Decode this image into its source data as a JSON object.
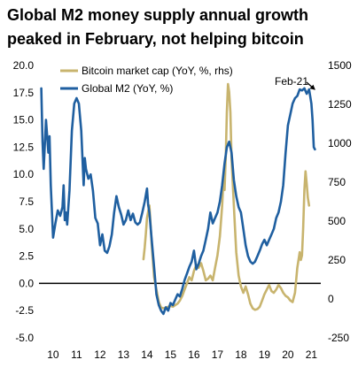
{
  "title": "Global M2 money supply annual growth peaked in February, not helping bitcoin",
  "chart_data": {
    "type": "line",
    "left_axis": {
      "min": -5.0,
      "max": 20.0,
      "ticks": [
        "-5.0",
        "-2.5",
        "0.0",
        "2.5",
        "5.0",
        "7.5",
        "10.0",
        "12.5",
        "15.0",
        "17.5",
        "20.0"
      ]
    },
    "right_axis": {
      "min": -250,
      "max": 1500,
      "ticks": [
        "-250",
        "0",
        "250",
        "500",
        "750",
        "1000",
        "1250",
        "1500"
      ]
    },
    "x_axis": {
      "min": 9.4,
      "max": 21.4,
      "ticks": [
        {
          "v": 10,
          "label": "10"
        },
        {
          "v": 11,
          "label": "11"
        },
        {
          "v": 12,
          "label": "12"
        },
        {
          "v": 13,
          "label": "13"
        },
        {
          "v": 14,
          "label": "14"
        },
        {
          "v": 15,
          "label": "15"
        },
        {
          "v": 16,
          "label": "16"
        },
        {
          "v": 17,
          "label": "17"
        },
        {
          "v": 18,
          "label": "18"
        },
        {
          "v": 19,
          "label": "19"
        },
        {
          "v": 20,
          "label": "20"
        },
        {
          "v": 21,
          "label": "21"
        }
      ]
    },
    "zero_line": true,
    "legend": {
      "position": "top-left",
      "entries": [
        {
          "label": "Bitcoin market cap (YoY, %, rhs)",
          "color": "#c8b46e"
        },
        {
          "label": "Global M2 (YoY, %)",
          "color": "#1f5fa0"
        }
      ]
    },
    "annotation": {
      "text": "Feb-21",
      "x": 21.1,
      "y": 17.9
    },
    "series": [
      {
        "name": "Global M2 (YoY, %)",
        "axis": "left",
        "color": "#1f5fa0",
        "points": [
          [
            9.5,
            17.9
          ],
          [
            9.55,
            13.0
          ],
          [
            9.6,
            10.5
          ],
          [
            9.7,
            15.0
          ],
          [
            9.8,
            12.0
          ],
          [
            9.85,
            13.5
          ],
          [
            9.9,
            9.0
          ],
          [
            10.0,
            4.2
          ],
          [
            10.1,
            5.5
          ],
          [
            10.2,
            6.7
          ],
          [
            10.3,
            6.2
          ],
          [
            10.4,
            7.0
          ],
          [
            10.45,
            9.0
          ],
          [
            10.5,
            5.8
          ],
          [
            10.55,
            6.5
          ],
          [
            10.6,
            5.4
          ],
          [
            10.7,
            8.5
          ],
          [
            10.8,
            14.0
          ],
          [
            10.9,
            16.5
          ],
          [
            11.0,
            17.0
          ],
          [
            11.1,
            16.5
          ],
          [
            11.2,
            14.0
          ],
          [
            11.3,
            9.0
          ],
          [
            11.35,
            11.5
          ],
          [
            11.4,
            10.5
          ],
          [
            11.5,
            9.6
          ],
          [
            11.6,
            10.0
          ],
          [
            11.7,
            8.5
          ],
          [
            11.8,
            6.0
          ],
          [
            11.9,
            5.5
          ],
          [
            12.0,
            3.5
          ],
          [
            12.1,
            4.5
          ],
          [
            12.2,
            3.0
          ],
          [
            12.3,
            2.8
          ],
          [
            12.4,
            3.4
          ],
          [
            12.5,
            4.5
          ],
          [
            12.6,
            6.5
          ],
          [
            12.7,
            8.0
          ],
          [
            12.8,
            7.0
          ],
          [
            12.9,
            6.3
          ],
          [
            13.0,
            5.4
          ],
          [
            13.1,
            5.8
          ],
          [
            13.2,
            6.7
          ],
          [
            13.3,
            5.8
          ],
          [
            13.4,
            6.4
          ],
          [
            13.5,
            5.6
          ],
          [
            13.6,
            5.4
          ],
          [
            13.7,
            5.6
          ],
          [
            13.8,
            6.5
          ],
          [
            13.9,
            7.5
          ],
          [
            14.0,
            8.7
          ],
          [
            14.05,
            7.2
          ],
          [
            14.1,
            6.5
          ],
          [
            14.2,
            4.0
          ],
          [
            14.3,
            1.5
          ],
          [
            14.4,
            -1.0
          ],
          [
            14.5,
            -2.0
          ],
          [
            14.6,
            -2.5
          ],
          [
            14.7,
            -2.8
          ],
          [
            14.8,
            -2.2
          ],
          [
            14.9,
            -2.5
          ],
          [
            15.0,
            -1.8
          ],
          [
            15.1,
            -2.0
          ],
          [
            15.2,
            -1.5
          ],
          [
            15.3,
            -1.0
          ],
          [
            15.4,
            -1.2
          ],
          [
            15.5,
            -0.5
          ],
          [
            15.6,
            0.3
          ],
          [
            15.7,
            0.9
          ],
          [
            15.8,
            1.5
          ],
          [
            15.9,
            2.0
          ],
          [
            16.0,
            3.0
          ],
          [
            16.1,
            1.3
          ],
          [
            16.2,
            1.8
          ],
          [
            16.3,
            2.5
          ],
          [
            16.4,
            3.0
          ],
          [
            16.5,
            4.0
          ],
          [
            16.6,
            5.0
          ],
          [
            16.7,
            6.5
          ],
          [
            16.8,
            5.5
          ],
          [
            16.9,
            6.0
          ],
          [
            17.0,
            6.5
          ],
          [
            17.1,
            7.5
          ],
          [
            17.2,
            9.0
          ],
          [
            17.3,
            11.0
          ],
          [
            17.4,
            12.5
          ],
          [
            17.5,
            13.0
          ],
          [
            17.6,
            12.0
          ],
          [
            17.7,
            9.5
          ],
          [
            17.8,
            8.0
          ],
          [
            17.9,
            7.0
          ],
          [
            18.0,
            6.5
          ],
          [
            18.1,
            5.0
          ],
          [
            18.2,
            3.5
          ],
          [
            18.3,
            2.5
          ],
          [
            18.4,
            2.0
          ],
          [
            18.5,
            1.8
          ],
          [
            18.6,
            2.0
          ],
          [
            18.7,
            2.5
          ],
          [
            18.8,
            3.0
          ],
          [
            18.9,
            3.6
          ],
          [
            19.0,
            4.0
          ],
          [
            19.1,
            3.5
          ],
          [
            19.2,
            4.0
          ],
          [
            19.3,
            4.5
          ],
          [
            19.4,
            5.0
          ],
          [
            19.5,
            6.0
          ],
          [
            19.6,
            6.5
          ],
          [
            19.7,
            7.5
          ],
          [
            19.8,
            9.0
          ],
          [
            19.9,
            12.0
          ],
          [
            20.0,
            14.5
          ],
          [
            20.1,
            15.5
          ],
          [
            20.2,
            16.5
          ],
          [
            20.3,
            17.0
          ],
          [
            20.4,
            17.2
          ],
          [
            20.5,
            17.8
          ],
          [
            20.6,
            17.7
          ],
          [
            20.7,
            17.9
          ],
          [
            20.8,
            17.4
          ],
          [
            20.9,
            17.8
          ],
          [
            21.0,
            16.5
          ],
          [
            21.05,
            15.0
          ],
          [
            21.1,
            12.5
          ],
          [
            21.15,
            12.3
          ]
        ]
      },
      {
        "name": "Bitcoin market cap (YoY, %, rhs)",
        "axis": "right",
        "color": "#c8b46e",
        "points": [
          [
            13.85,
            255
          ],
          [
            13.9,
            330
          ],
          [
            13.95,
            420
          ],
          [
            14.0,
            520
          ],
          [
            14.05,
            560
          ],
          [
            14.1,
            600
          ],
          [
            14.15,
            480
          ],
          [
            14.2,
            350
          ],
          [
            14.25,
            250
          ],
          [
            14.3,
            140
          ],
          [
            14.4,
            60
          ],
          [
            14.5,
            -20
          ],
          [
            14.6,
            -55
          ],
          [
            14.7,
            -60
          ],
          [
            14.8,
            -55
          ],
          [
            14.9,
            -50
          ],
          [
            15.0,
            -45
          ],
          [
            15.1,
            -50
          ],
          [
            15.2,
            -40
          ],
          [
            15.3,
            -30
          ],
          [
            15.4,
            -10
          ],
          [
            15.5,
            20
          ],
          [
            15.6,
            60
          ],
          [
            15.7,
            100
          ],
          [
            15.8,
            140
          ],
          [
            15.9,
            120
          ],
          [
            16.0,
            180
          ],
          [
            16.1,
            220
          ],
          [
            16.2,
            200
          ],
          [
            16.3,
            230
          ],
          [
            16.4,
            180
          ],
          [
            16.5,
            120
          ],
          [
            16.6,
            130
          ],
          [
            16.7,
            150
          ],
          [
            16.8,
            120
          ],
          [
            16.9,
            200
          ],
          [
            17.0,
            280
          ],
          [
            17.1,
            400
          ],
          [
            17.2,
            600
          ],
          [
            17.25,
            750
          ],
          [
            17.3,
            700
          ],
          [
            17.35,
            900
          ],
          [
            17.4,
            1200
          ],
          [
            17.45,
            1380
          ],
          [
            17.5,
            1330
          ],
          [
            17.55,
            1200
          ],
          [
            17.6,
            900
          ],
          [
            17.7,
            600
          ],
          [
            17.8,
            300
          ],
          [
            17.9,
            150
          ],
          [
            18.0,
            80
          ],
          [
            18.1,
            40
          ],
          [
            18.2,
            80
          ],
          [
            18.3,
            30
          ],
          [
            18.4,
            -30
          ],
          [
            18.5,
            -60
          ],
          [
            18.6,
            -70
          ],
          [
            18.7,
            -65
          ],
          [
            18.8,
            -50
          ],
          [
            18.9,
            -10
          ],
          [
            19.0,
            30
          ],
          [
            19.1,
            60
          ],
          [
            19.2,
            90
          ],
          [
            19.3,
            50
          ],
          [
            19.4,
            40
          ],
          [
            19.5,
            60
          ],
          [
            19.6,
            90
          ],
          [
            19.7,
            70
          ],
          [
            19.8,
            40
          ],
          [
            19.9,
            20
          ],
          [
            20.0,
            10
          ],
          [
            20.1,
            -10
          ],
          [
            20.2,
            -20
          ],
          [
            20.3,
            40
          ],
          [
            20.4,
            200
          ],
          [
            20.5,
            300
          ],
          [
            20.55,
            250
          ],
          [
            20.6,
            280
          ],
          [
            20.65,
            450
          ],
          [
            20.7,
            700
          ],
          [
            20.75,
            820
          ],
          [
            20.8,
            740
          ],
          [
            20.85,
            650
          ],
          [
            20.9,
            600
          ]
        ]
      }
    ]
  }
}
